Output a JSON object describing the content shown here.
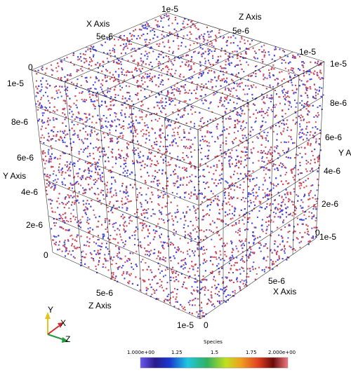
{
  "axes": {
    "x": {
      "title": "X Axis",
      "back_ticks": [
        "1e-5",
        "5e-6"
      ],
      "front_ticks": [
        "5e-6",
        "1e-5"
      ]
    },
    "y": {
      "title_left": "Y Axis",
      "title_right": "Y A",
      "left_ticks": [
        "0",
        "1e-5",
        "8e-6",
        "6e-6",
        "4e-6",
        "2e-6",
        "0"
      ],
      "right_ticks": [
        "1e-5",
        "8e-6",
        "6e-6",
        "4e-6",
        "2e-6",
        "0"
      ]
    },
    "z": {
      "title_top": "Z Axis",
      "title_bottom": "Z Axis",
      "top_ticks": [
        "5e-6",
        "1e-5"
      ],
      "bottom_ticks": [
        "5e-6",
        "1e-5"
      ],
      "corner_right": "1e-5",
      "corner_bottom": "0"
    }
  },
  "orientation_widget": {
    "labels": [
      "Y",
      "X",
      "Z"
    ],
    "colors": {
      "x": "#d22a2a",
      "y": "#e6c21a",
      "z": "#1f9a3a"
    }
  },
  "colorbar": {
    "title": "Species",
    "tick_labels": [
      "1.000e+00",
      "1.25",
      "1.5",
      "1.75",
      "2.000e+00"
    ],
    "range": [
      1,
      2
    ]
  },
  "particles": {
    "species_colors": [
      "#4a4ae0",
      "#d24a5a"
    ]
  }
}
